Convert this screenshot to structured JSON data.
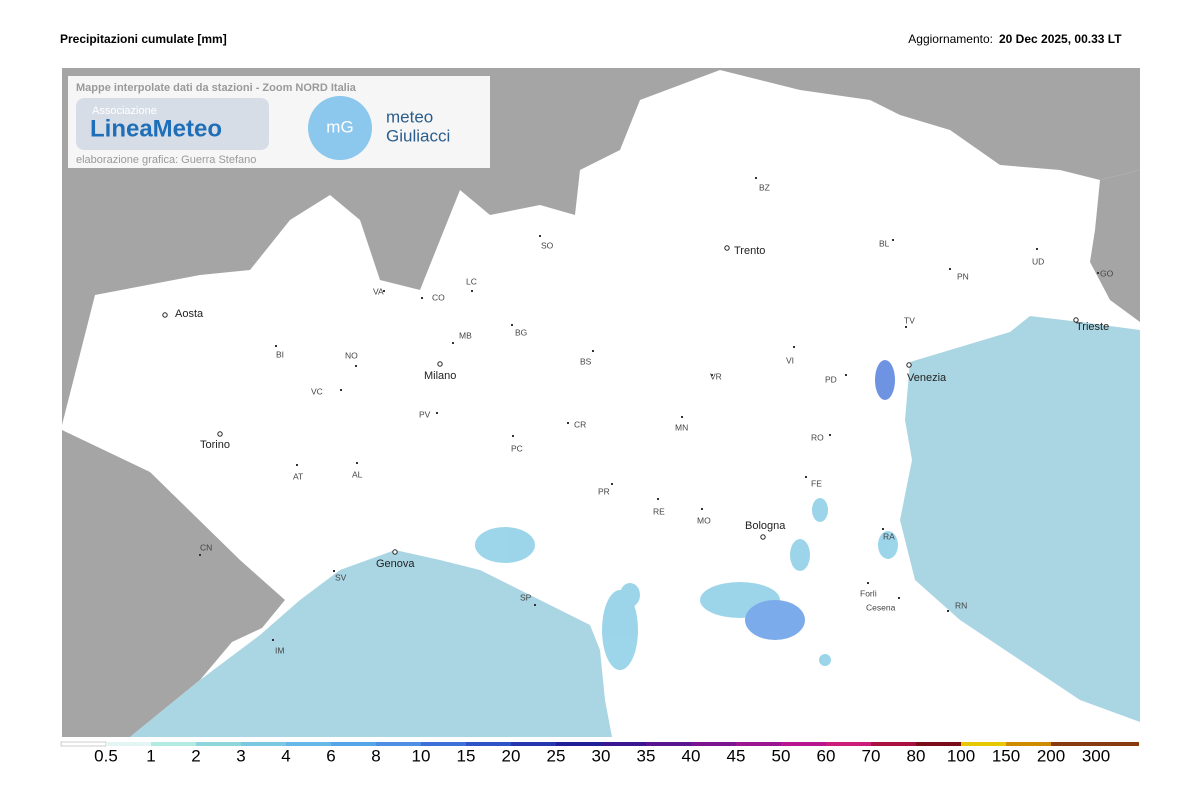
{
  "header": {
    "title": "Precipitazioni cumulate [mm]",
    "update_label": "Aggiornamento:",
    "update_value": "20 Dec 2025, 00.33 LT"
  },
  "panel": {
    "caption": "Mappe interpolate dati da stazioni - Zoom NORD Italia",
    "logo1_small": "Associazione",
    "logo1_main": "LineaMeteo",
    "credit": "elaborazione grafica: Guerra Stefano",
    "logo2_icon": "mG",
    "logo2_line1": "meteo",
    "logo2_line2": "Giuliacci"
  },
  "map": {
    "cities": [
      "Aosta",
      "Torino",
      "Milano",
      "Genova",
      "Trento",
      "Venezia",
      "Bologna",
      "Trieste"
    ],
    "provinces": [
      "SO",
      "CO",
      "VA",
      "LC",
      "MB",
      "BG",
      "BS",
      "BZ",
      "BL",
      "UD",
      "PN",
      "GO",
      "TV",
      "VI",
      "PD",
      "VR",
      "MN",
      "CR",
      "PC",
      "PV",
      "NO",
      "VC",
      "BI",
      "AT",
      "AL",
      "PR",
      "RE",
      "MO",
      "FE",
      "RO",
      "RA",
      "Forlì",
      "Cesena",
      "RN",
      "SV",
      "SP",
      "IM",
      "CN"
    ]
  },
  "legend": {
    "items": [
      {
        "value": 0.5,
        "color": "#ffffff"
      },
      {
        "value": 1,
        "color": "#e3f6f3"
      },
      {
        "value": 2,
        "color": "#b3ebe2"
      },
      {
        "value": 3,
        "color": "#8fd6dc"
      },
      {
        "value": 4,
        "color": "#7cc8e3"
      },
      {
        "value": 6,
        "color": "#66b8e8"
      },
      {
        "value": 8,
        "color": "#54a6e8"
      },
      {
        "value": 10,
        "color": "#4f8fe3"
      },
      {
        "value": 15,
        "color": "#3d6fd8"
      },
      {
        "value": 20,
        "color": "#2f52c8"
      },
      {
        "value": 25,
        "color": "#2536b0"
      },
      {
        "value": 30,
        "color": "#1f1f98"
      },
      {
        "value": 35,
        "color": "#3a1790"
      },
      {
        "value": 40,
        "color": "#5a1590"
      },
      {
        "value": 45,
        "color": "#7a1490"
      },
      {
        "value": 50,
        "color": "#9a1591"
      },
      {
        "value": 60,
        "color": "#b8168e"
      },
      {
        "value": 70,
        "color": "#cc1d7a"
      },
      {
        "value": 80,
        "color": "#a81040"
      },
      {
        "value": 100,
        "color": "#7a0d1a"
      },
      {
        "value": 150,
        "color": "#e6c800"
      },
      {
        "value": 200,
        "color": "#d08a00"
      },
      {
        "value": 300,
        "color": "#8a3a10"
      }
    ]
  }
}
